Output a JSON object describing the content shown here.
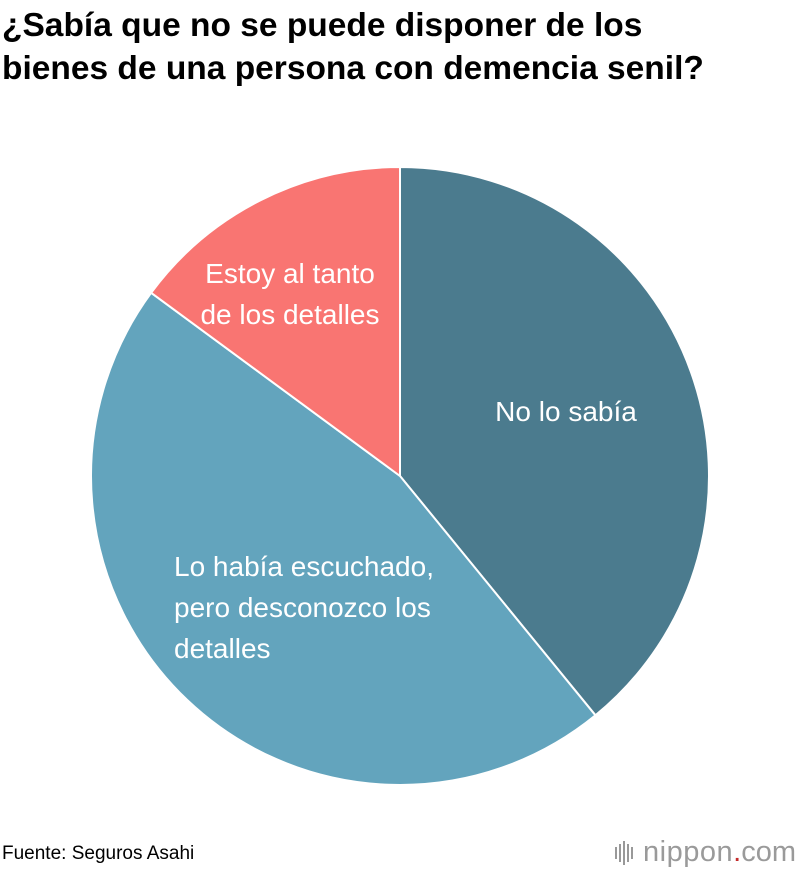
{
  "title": {
    "line1": "¿Sabía que no se puede disponer de los",
    "line2": "bienes de una persona con demencia senil?"
  },
  "chart_data": {
    "type": "pie",
    "title": "¿Sabía que no se puede disponer de los bienes de una persona con demencia senil?",
    "start": "12 o'clock, clockwise",
    "unit": "%",
    "slices": [
      {
        "label_lines": [
          "No lo sabía"
        ],
        "value": 39.1,
        "color": "#4b7b8e"
      },
      {
        "label_lines": [
          "Lo había escuchado,",
          "pero desconozco los",
          "detalles"
        ],
        "value": 46.0,
        "color": "#63a4bd"
      },
      {
        "label_lines": [
          "Estoy al tanto",
          "de los detalles"
        ],
        "value": 14.9,
        "color": "#f97572"
      }
    ]
  },
  "footer": {
    "source": "Fuente: Seguros Asahi",
    "brand_main": "nippon",
    "brand_dot": ".",
    "brand_tld": "com"
  }
}
